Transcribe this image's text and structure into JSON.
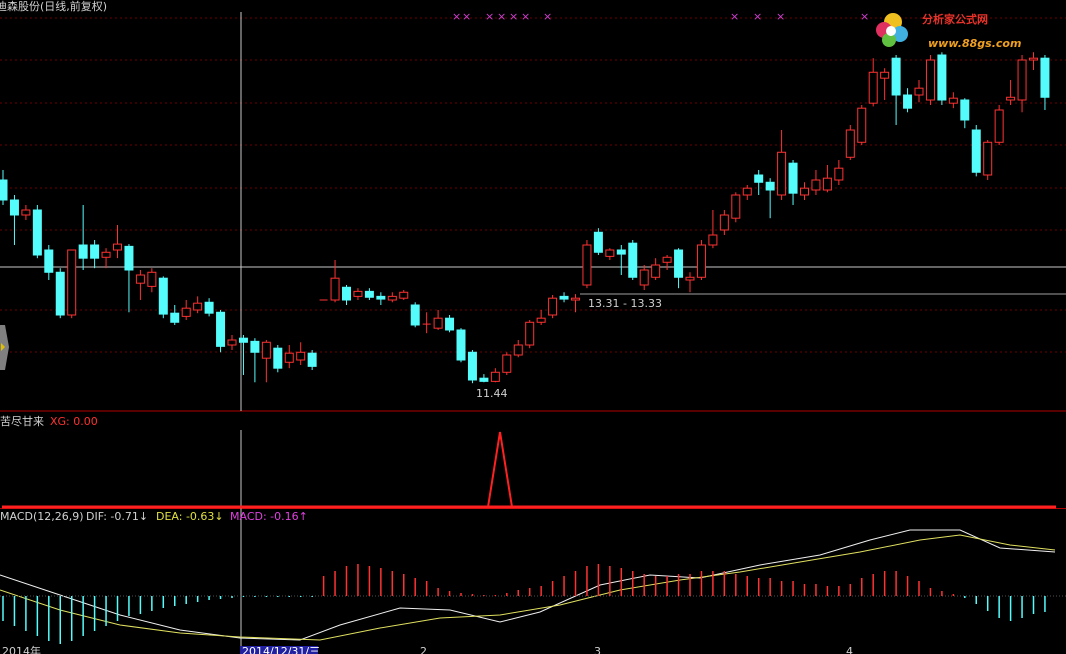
{
  "header": {
    "title": "迪森股份(日线,前复权)"
  },
  "price": {
    "ylim": [
      10.85,
      19.87
    ],
    "candles": [
      [
        15.91,
        15.47,
        16.13,
        15.36
      ],
      [
        15.47,
        15.14,
        15.58,
        14.48
      ],
      [
        15.14,
        15.25,
        15.36,
        15.03
      ],
      [
        15.25,
        14.26,
        15.36,
        14.19
      ],
      [
        14.37,
        13.88,
        14.48,
        13.71
      ],
      [
        13.88,
        12.94,
        13.97,
        12.87
      ],
      [
        12.94,
        14.37,
        14.37,
        12.87
      ],
      [
        14.48,
        14.19,
        15.36,
        13.93
      ],
      [
        14.48,
        14.19,
        14.59,
        13.97
      ],
      [
        14.21,
        14.32,
        14.41,
        13.97
      ],
      [
        14.37,
        14.5,
        14.92,
        14.19
      ],
      [
        14.45,
        13.93,
        14.5,
        13.0
      ],
      [
        13.64,
        13.82,
        13.93,
        13.27
      ],
      [
        13.57,
        13.88,
        13.97,
        13.44
      ],
      [
        13.75,
        12.96,
        13.79,
        12.87
      ],
      [
        12.98,
        12.78,
        13.16,
        12.72
      ],
      [
        12.91,
        13.09,
        13.27,
        12.83
      ],
      [
        13.05,
        13.2,
        13.35,
        12.98
      ],
      [
        13.22,
        12.98,
        13.31,
        12.91
      ],
      [
        13.0,
        12.25,
        13.05,
        12.12
      ],
      [
        12.28,
        12.39,
        12.5,
        12.17
      ],
      [
        12.43,
        12.34,
        12.5,
        11.62
      ],
      [
        12.36,
        12.12,
        12.43,
        11.46
      ],
      [
        11.99,
        12.34,
        12.39,
        11.46
      ],
      [
        12.21,
        11.77,
        12.28,
        11.68
      ],
      [
        11.9,
        12.1,
        12.28,
        11.77
      ],
      [
        11.95,
        12.12,
        12.34,
        11.84
      ],
      [
        12.1,
        11.81,
        12.17,
        11.73
      ],
      [
        13.27,
        13.27,
        13.27,
        13.27
      ],
      [
        13.27,
        13.75,
        14.15,
        13.22
      ],
      [
        13.55,
        13.27,
        13.6,
        13.16
      ],
      [
        13.35,
        13.46,
        13.53,
        13.27
      ],
      [
        13.46,
        13.33,
        13.53,
        13.27
      ],
      [
        13.35,
        13.29,
        13.44,
        13.16
      ],
      [
        13.27,
        13.35,
        13.44,
        13.22
      ],
      [
        13.31,
        13.44,
        13.49,
        13.27
      ],
      [
        13.16,
        12.72,
        13.22,
        12.67
      ],
      [
        12.72,
        12.74,
        13.0,
        12.54
      ],
      [
        12.65,
        12.87,
        13.05,
        12.61
      ],
      [
        12.87,
        12.61,
        12.94,
        12.56
      ],
      [
        12.61,
        11.95,
        12.65,
        11.9
      ],
      [
        12.12,
        11.51,
        12.17,
        11.44
      ],
      [
        11.55,
        11.48,
        11.64,
        11.46
      ],
      [
        11.48,
        11.68,
        11.77,
        11.46
      ],
      [
        11.68,
        12.06,
        12.12,
        11.62
      ],
      [
        12.06,
        12.28,
        12.39,
        12.01
      ],
      [
        12.28,
        12.78,
        12.83,
        12.21
      ],
      [
        12.78,
        12.87,
        13.05,
        12.72
      ],
      [
        12.94,
        13.31,
        13.38,
        12.87
      ],
      [
        13.35,
        13.29,
        13.44,
        13.22
      ],
      [
        13.27,
        13.31,
        13.4,
        13.0
      ],
      [
        13.6,
        14.48,
        14.59,
        13.53
      ],
      [
        14.76,
        14.32,
        14.85,
        14.26
      ],
      [
        14.23,
        14.37,
        14.41,
        14.15
      ],
      [
        14.37,
        14.28,
        14.48,
        13.82
      ],
      [
        14.52,
        13.77,
        14.59,
        13.71
      ],
      [
        13.6,
        13.93,
        14.04,
        13.49
      ],
      [
        13.77,
        14.04,
        14.19,
        13.71
      ],
      [
        14.1,
        14.21,
        14.26,
        13.93
      ],
      [
        14.37,
        13.77,
        14.41,
        13.53
      ],
      [
        13.71,
        13.77,
        13.88,
        13.44
      ],
      [
        13.77,
        14.48,
        14.59,
        13.71
      ],
      [
        14.48,
        14.7,
        15.25,
        14.41
      ],
      [
        14.81,
        15.14,
        15.25,
        14.7
      ],
      [
        15.07,
        15.58,
        15.64,
        14.98
      ],
      [
        15.58,
        15.73,
        15.8,
        15.47
      ],
      [
        16.02,
        15.86,
        16.13,
        15.58
      ],
      [
        15.86,
        15.69,
        15.95,
        15.07
      ],
      [
        15.58,
        16.52,
        17.01,
        15.47
      ],
      [
        16.28,
        15.62,
        16.35,
        15.36
      ],
      [
        15.58,
        15.73,
        15.86,
        15.47
      ],
      [
        15.69,
        15.91,
        16.13,
        15.58
      ],
      [
        15.69,
        15.95,
        16.24,
        15.64
      ],
      [
        15.91,
        16.17,
        16.35,
        15.8
      ],
      [
        16.41,
        17.01,
        17.12,
        16.35
      ],
      [
        16.74,
        17.49,
        17.56,
        16.68
      ],
      [
        17.6,
        18.28,
        18.59,
        17.53
      ],
      [
        18.15,
        18.28,
        18.37,
        17.67
      ],
      [
        18.59,
        17.78,
        18.66,
        17.12
      ],
      [
        17.78,
        17.49,
        17.93,
        17.4
      ],
      [
        17.78,
        17.93,
        18.11,
        17.62
      ],
      [
        17.67,
        18.55,
        18.66,
        17.56
      ],
      [
        18.66,
        17.67,
        18.72,
        17.56
      ],
      [
        17.6,
        17.71,
        17.84,
        17.49
      ],
      [
        17.67,
        17.23,
        17.71,
        17.05
      ],
      [
        17.01,
        16.08,
        17.12,
        15.99
      ],
      [
        16.02,
        16.74,
        16.79,
        15.91
      ],
      [
        16.74,
        17.45,
        17.56,
        16.68
      ],
      [
        17.67,
        17.73,
        18.11,
        17.56
      ],
      [
        17.67,
        18.55,
        18.66,
        17.4
      ],
      [
        18.55,
        18.59,
        18.72,
        18.33
      ],
      [
        18.59,
        17.73,
        18.66,
        17.45
      ]
    ],
    "low_label": "11.44",
    "range_label": "13.31 - 13.33"
  },
  "indicator": {
    "name": "苦尽甘来",
    "value": "XG: 0.00"
  },
  "macd": {
    "name": "MACD(12,26,9)",
    "dif": "DIF: -0.71↓",
    "dea": "DEA: -0.63↓",
    "macd": "MACD: -0.16↑",
    "hist": [
      -0.25,
      -0.3,
      -0.35,
      -0.4,
      -0.45,
      -0.48,
      -0.45,
      -0.4,
      -0.35,
      -0.3,
      -0.25,
      -0.2,
      -0.18,
      -0.15,
      -0.12,
      -0.1,
      -0.08,
      -0.06,
      -0.04,
      -0.03,
      -0.02,
      -0.01,
      -0.01,
      -0.01,
      -0.01,
      -0.01,
      -0.01,
      -0.01,
      0.2,
      0.25,
      0.3,
      0.32,
      0.3,
      0.28,
      0.25,
      0.22,
      0.18,
      0.15,
      0.08,
      0.05,
      0.03,
      0.02,
      0.01,
      0.01,
      0.03,
      0.06,
      0.08,
      0.1,
      0.15,
      0.2,
      0.25,
      0.3,
      0.32,
      0.3,
      0.28,
      0.25,
      0.22,
      0.2,
      0.2,
      0.22,
      0.22,
      0.25,
      0.25,
      0.25,
      0.22,
      0.2,
      0.18,
      0.18,
      0.15,
      0.15,
      0.12,
      0.12,
      0.1,
      0.1,
      0.12,
      0.18,
      0.22,
      0.25,
      0.25,
      0.2,
      0.15,
      0.08,
      0.05,
      0.02,
      -0.02,
      -0.08,
      -0.15,
      -0.22,
      -0.25,
      -0.22,
      -0.18,
      -0.16
    ]
  },
  "axis": {
    "labels": [
      "2014年",
      "2014/12/31/三",
      "2",
      "3",
      "4"
    ]
  },
  "logo": {
    "name": "分析家公式网",
    "url": "www.88gs.com"
  }
}
